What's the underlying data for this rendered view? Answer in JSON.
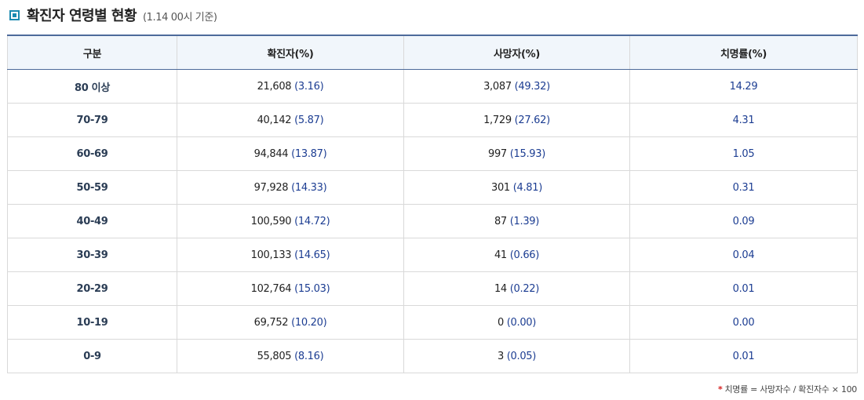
{
  "header": {
    "title": "확진자 연령별 현황",
    "subtitle": "(1.14 00시 기준)"
  },
  "table": {
    "columns": [
      "구분",
      "확진자(%)",
      "사망자(%)",
      "치명률(%)"
    ],
    "rows": [
      {
        "age": "80 이상",
        "cases": "21,608",
        "cases_pct": "(3.16)",
        "deaths": "3,087",
        "deaths_pct": "(49.32)",
        "rate": "14.29"
      },
      {
        "age": "70-79",
        "cases": "40,142",
        "cases_pct": "(5.87)",
        "deaths": "1,729",
        "deaths_pct": "(27.62)",
        "rate": "4.31"
      },
      {
        "age": "60-69",
        "cases": "94,844",
        "cases_pct": "(13.87)",
        "deaths": "997",
        "deaths_pct": "(15.93)",
        "rate": "1.05"
      },
      {
        "age": "50-59",
        "cases": "97,928",
        "cases_pct": "(14.33)",
        "deaths": "301",
        "deaths_pct": "(4.81)",
        "rate": "0.31"
      },
      {
        "age": "40-49",
        "cases": "100,590",
        "cases_pct": "(14.72)",
        "deaths": "87",
        "deaths_pct": "(1.39)",
        "rate": "0.09"
      },
      {
        "age": "30-39",
        "cases": "100,133",
        "cases_pct": "(14.65)",
        "deaths": "41",
        "deaths_pct": "(0.66)",
        "rate": "0.04"
      },
      {
        "age": "20-29",
        "cases": "102,764",
        "cases_pct": "(15.03)",
        "deaths": "14",
        "deaths_pct": "(0.22)",
        "rate": "0.01"
      },
      {
        "age": "10-19",
        "cases": "69,752",
        "cases_pct": "(10.20)",
        "deaths": "0",
        "deaths_pct": "(0.00)",
        "rate": "0.00"
      },
      {
        "age": "0-9",
        "cases": "55,805",
        "cases_pct": "(8.16)",
        "deaths": "3",
        "deaths_pct": "(0.05)",
        "rate": "0.01"
      }
    ]
  },
  "footnote": {
    "star": "*",
    "text": "치명률 = 사망자수 / 확진자수 × 100"
  },
  "colors": {
    "accent": "#1a8ab0",
    "header_bg": "#f1f6fb",
    "table_top_border": "#4d6a9a",
    "value_blue": "#1c3d92",
    "star_red": "#d62020"
  },
  "icons": {
    "title": "square-bullet-icon"
  }
}
